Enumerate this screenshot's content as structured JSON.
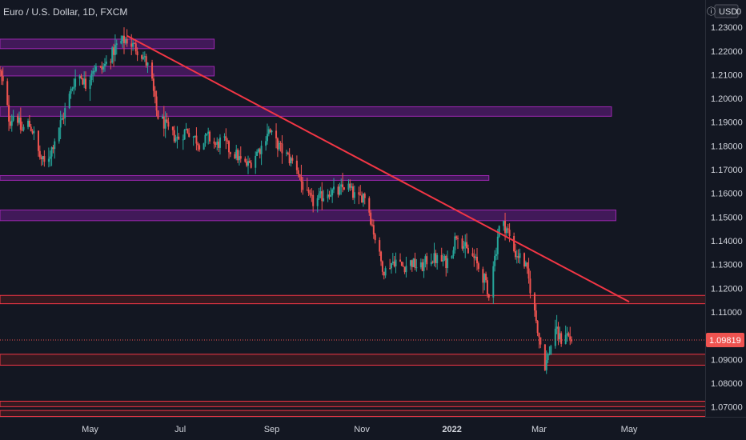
{
  "header": {
    "symbol_title": "Euro / U.S. Dollar, 1D, FXCM",
    "price_scale_icon": "info-icon",
    "currency_label": "USD",
    "currency_suffix": "0"
  },
  "colors": {
    "background": "#131722",
    "up": "#26a69a",
    "down": "#ef5350",
    "trendline": "#f23645",
    "resistance_zone_border": "#9c27b0",
    "resistance_zone_fill": "#4a1a63",
    "support_zone_border": "#f23645",
    "support_zone_fill": "#3b1a20",
    "axis_text": "#d1d4dc"
  },
  "chart_data": {
    "type": "candlestick",
    "instrument": "EURUSD",
    "timeframe": "1D",
    "ylim": [
      1.0655,
      1.2415
    ],
    "y_ticks": [
      "1.07000",
      "1.08000",
      "1.09000",
      "1.10000",
      "1.11000",
      "1.12000",
      "1.13000",
      "1.14000",
      "1.15000",
      "1.16000",
      "1.17000",
      "1.18000",
      "1.19000",
      "1.20000",
      "1.21000",
      "1.22000",
      "1.23000"
    ],
    "x_ticks": [
      {
        "label": "May",
        "day": 0
      },
      {
        "label": "Jul",
        "day": 61
      },
      {
        "label": "Sep",
        "day": 123
      },
      {
        "label": "Nov",
        "day": 184
      },
      {
        "label": "2022",
        "day": 245,
        "bold": true
      },
      {
        "label": "Mar",
        "day": 304
      },
      {
        "label": "May",
        "day": 365
      }
    ],
    "x_range_days": [
      -61,
      417
    ],
    "last_price": {
      "label": "1.09819",
      "value": 1.09819
    },
    "price_path": [
      [
        -61,
        1.212
      ],
      [
        -58,
        1.205
      ],
      [
        -54,
        1.19
      ],
      [
        -50,
        1.195
      ],
      [
        -46,
        1.186
      ],
      [
        -42,
        1.19
      ],
      [
        -38,
        1.186
      ],
      [
        -34,
        1.176
      ],
      [
        -30,
        1.172
      ],
      [
        -26,
        1.178
      ],
      [
        -22,
        1.186
      ],
      [
        -18,
        1.192
      ],
      [
        -14,
        1.2
      ],
      [
        -10,
        1.208
      ],
      [
        -6,
        1.21
      ],
      [
        -2,
        1.205
      ],
      [
        2,
        1.213
      ],
      [
        8,
        1.212
      ],
      [
        14,
        1.217
      ],
      [
        18,
        1.222
      ],
      [
        22,
        1.224
      ],
      [
        25,
        1.225
      ],
      [
        28,
        1.223
      ],
      [
        32,
        1.221
      ],
      [
        36,
        1.218
      ],
      [
        40,
        1.213
      ],
      [
        42,
        1.209
      ],
      [
        44,
        1.2
      ],
      [
        46,
        1.193
      ],
      [
        50,
        1.19
      ],
      [
        55,
        1.185
      ],
      [
        60,
        1.183
      ],
      [
        66,
        1.187
      ],
      [
        72,
        1.183
      ],
      [
        76,
        1.18
      ],
      [
        80,
        1.184
      ],
      [
        86,
        1.18
      ],
      [
        90,
        1.183
      ],
      [
        95,
        1.178
      ],
      [
        100,
        1.176
      ],
      [
        104,
        1.172
      ],
      [
        108,
        1.172
      ],
      [
        113,
        1.177
      ],
      [
        117,
        1.18
      ],
      [
        121,
        1.187
      ],
      [
        124,
        1.184
      ],
      [
        128,
        1.18
      ],
      [
        132,
        1.177
      ],
      [
        136,
        1.174
      ],
      [
        140,
        1.172
      ],
      [
        144,
        1.164
      ],
      [
        148,
        1.158
      ],
      [
        152,
        1.156
      ],
      [
        156,
        1.158
      ],
      [
        162,
        1.161
      ],
      [
        168,
        1.16
      ],
      [
        174,
        1.164
      ],
      [
        178,
        1.16
      ],
      [
        182,
        1.157
      ],
      [
        186,
        1.16
      ],
      [
        188,
        1.157
      ],
      [
        191,
        1.148
      ],
      [
        194,
        1.14
      ],
      [
        197,
        1.132
      ],
      [
        200,
        1.127
      ],
      [
        203,
        1.13
      ],
      [
        207,
        1.132
      ],
      [
        212,
        1.129
      ],
      [
        218,
        1.131
      ],
      [
        224,
        1.128
      ],
      [
        230,
        1.133
      ],
      [
        236,
        1.132
      ],
      [
        242,
        1.131
      ],
      [
        246,
        1.137
      ],
      [
        249,
        1.144
      ],
      [
        252,
        1.14
      ],
      [
        256,
        1.135
      ],
      [
        260,
        1.133
      ],
      [
        264,
        1.128
      ],
      [
        268,
        1.123
      ],
      [
        270,
        1.115
      ],
      [
        272,
        1.128
      ],
      [
        275,
        1.134
      ],
      [
        277,
        1.145
      ],
      [
        280,
        1.147
      ],
      [
        283,
        1.145
      ],
      [
        285,
        1.14
      ],
      [
        288,
        1.135
      ],
      [
        292,
        1.133
      ],
      [
        295,
        1.13
      ],
      [
        298,
        1.122
      ],
      [
        300,
        1.114
      ],
      [
        303,
        1.105
      ],
      [
        306,
        1.095
      ],
      [
        308,
        1.087
      ],
      [
        310,
        1.09
      ],
      [
        313,
        1.097
      ],
      [
        315,
        1.105
      ],
      [
        317,
        1.1
      ],
      [
        320,
        1.098
      ],
      [
        322,
        1.102
      ],
      [
        325,
        1.099
      ],
      [
        327,
        1.0982
      ]
    ],
    "trendline": {
      "p1": {
        "day": 25,
        "price": 1.2264
      },
      "p2": {
        "day": 365,
        "price": 1.1143
      }
    },
    "resistance_zones": [
      {
        "from_day": -61,
        "to_day": 84,
        "low": 1.221,
        "high": 1.225
      },
      {
        "from_day": -61,
        "to_day": 84,
        "low": 1.2095,
        "high": 1.2135
      },
      {
        "from_day": -61,
        "to_day": 353,
        "low": 1.1925,
        "high": 1.1965
      },
      {
        "from_day": -61,
        "to_day": 270,
        "low": 1.1655,
        "high": 1.1675
      },
      {
        "from_day": -61,
        "to_day": 356,
        "low": 1.1485,
        "high": 1.153
      }
    ],
    "support_zones": [
      {
        "from_day": -61,
        "to_day": 417,
        "low": 1.1135,
        "high": 1.117
      },
      {
        "from_day": -61,
        "to_day": 417,
        "low": 1.0876,
        "high": 1.0922
      },
      {
        "from_day": -61,
        "to_day": 417,
        "low": 1.0701,
        "high": 1.0724
      },
      {
        "from_day": -61,
        "to_day": 417,
        "low": 1.066,
        "high": 1.0685
      }
    ]
  }
}
